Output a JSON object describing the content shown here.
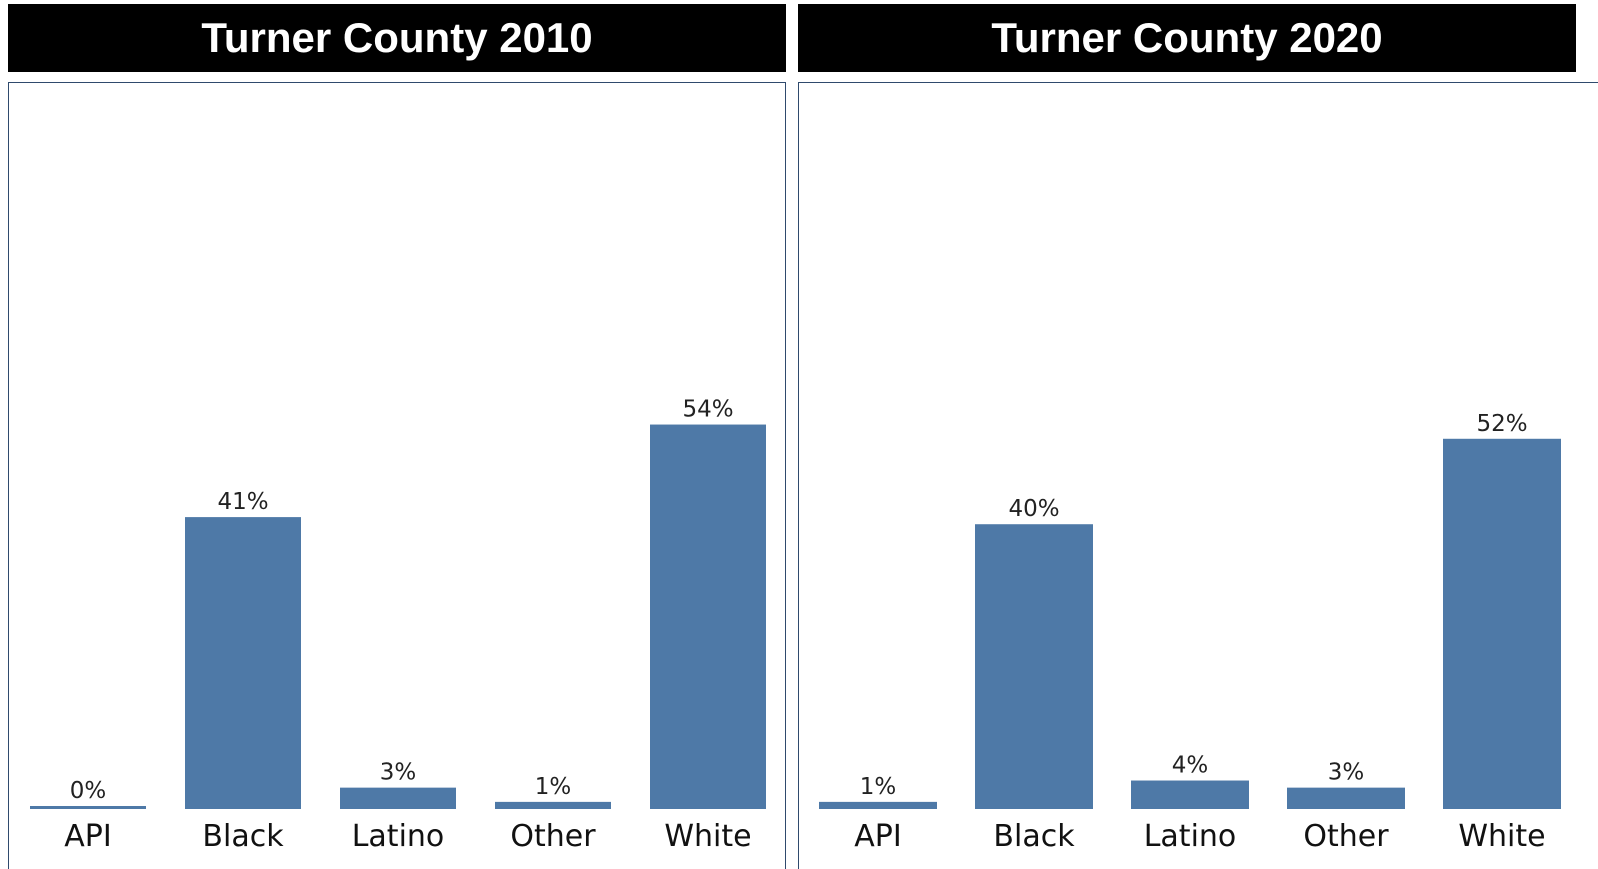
{
  "chart_data": [
    {
      "type": "bar",
      "title": "Turner County 2010",
      "categories": [
        "API",
        "Black",
        "Latino",
        "Other",
        "White"
      ],
      "values": [
        0,
        41,
        3,
        1,
        54
      ],
      "value_labels": [
        "0%",
        "41%",
        "3%",
        "1%",
        "54%"
      ],
      "ylim": [
        0,
        92
      ],
      "bar_color": "#4e79a7",
      "grid": false
    },
    {
      "type": "bar",
      "title": "Turner County 2020",
      "categories": [
        "API",
        "Black",
        "Latino",
        "Other",
        "White"
      ],
      "values": [
        1,
        40,
        4,
        3,
        52
      ],
      "value_labels": [
        "1%",
        "40%",
        "4%",
        "3%",
        "52%"
      ],
      "ylim": [
        0,
        92
      ],
      "bar_color": "#4e79a7",
      "grid": false
    }
  ]
}
